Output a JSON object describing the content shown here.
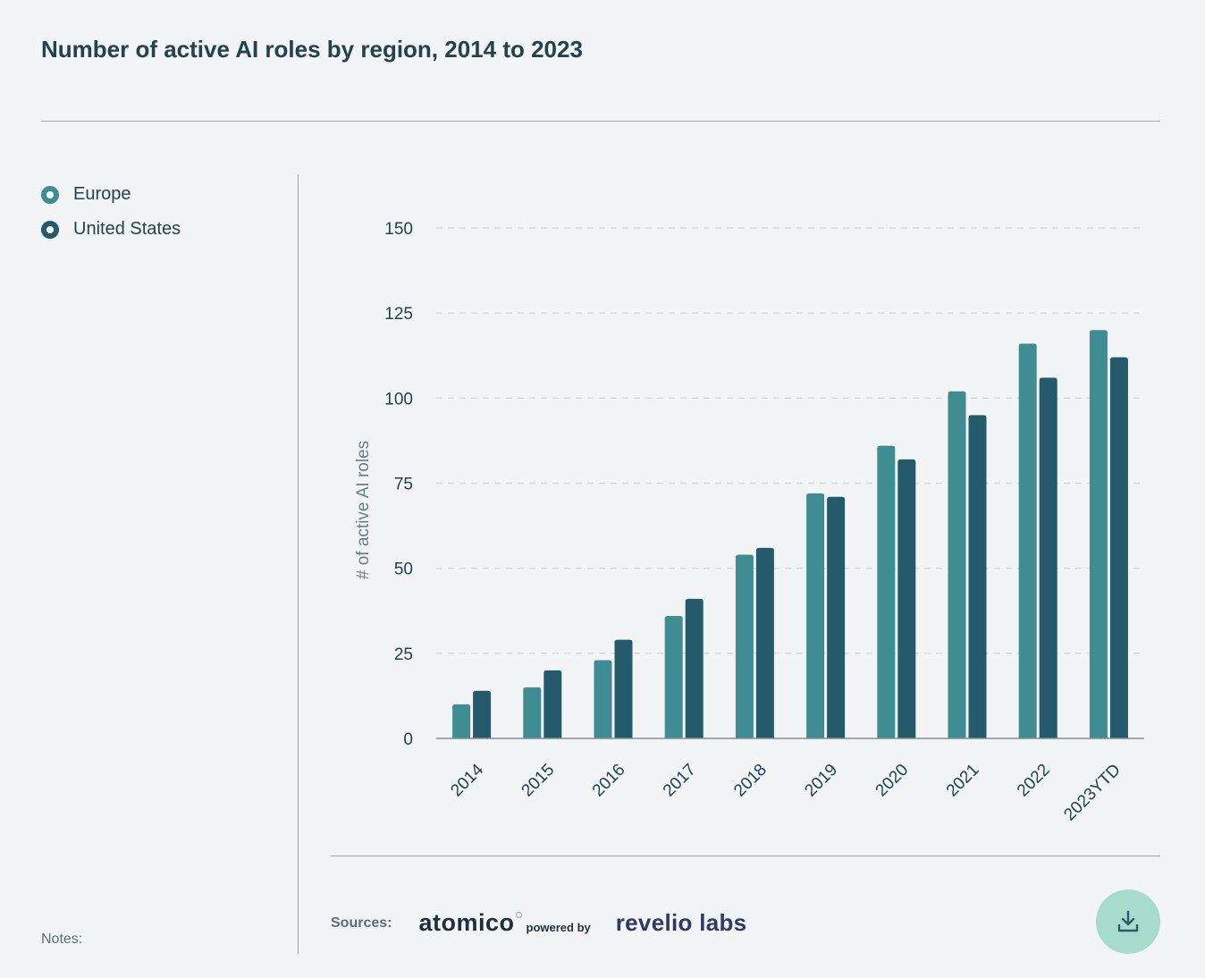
{
  "title": "Number of active AI roles by region, 2014 to 2023",
  "legend": [
    {
      "label": "Europe",
      "color": "#3f8d93"
    },
    {
      "label": "United States",
      "color": "#255a6c"
    }
  ],
  "notes_label": "Notes:",
  "sources": {
    "label": "Sources:",
    "logo_primary": "atomico",
    "powered_by": "powered by",
    "logo_secondary": "revelio labs"
  },
  "download_icon": "download-icon",
  "chart_data": {
    "type": "bar",
    "title": "Number of active AI roles by region, 2014 to 2023",
    "xlabel": "",
    "ylabel": "# of active AI roles",
    "ylim": [
      0,
      150
    ],
    "yticks": [
      0,
      25,
      50,
      75,
      100,
      125,
      150
    ],
    "grid": true,
    "legend_position": "top-left",
    "categories": [
      "2014",
      "2015",
      "2016",
      "2017",
      "2018",
      "2019",
      "2020",
      "2021",
      "2022",
      "2023YTD"
    ],
    "series": [
      {
        "name": "Europe",
        "color": "#3f8d93",
        "values": [
          10,
          15,
          23,
          36,
          54,
          72,
          86,
          102,
          116,
          120
        ]
      },
      {
        "name": "United States",
        "color": "#255a6c",
        "values": [
          14,
          20,
          29,
          41,
          56,
          71,
          82,
          95,
          106,
          112
        ]
      }
    ]
  }
}
